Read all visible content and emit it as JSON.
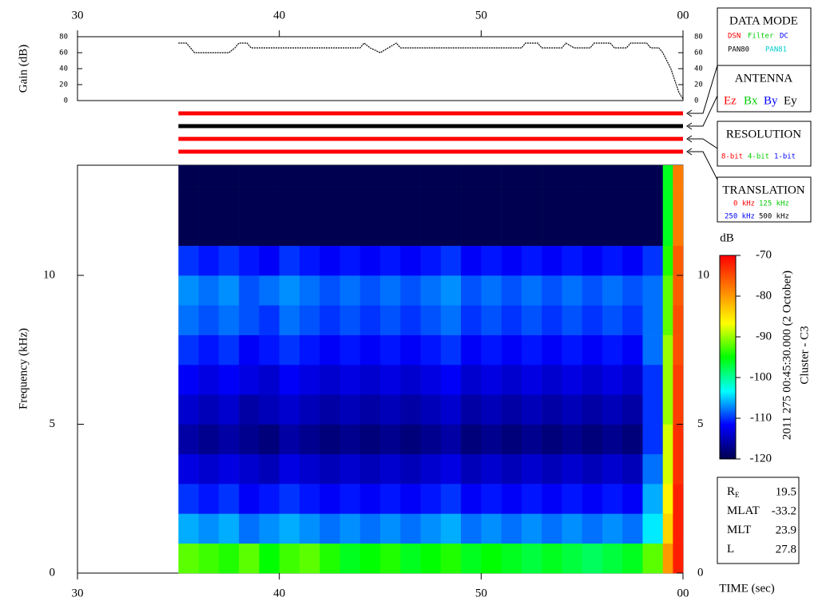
{
  "chart_data": [
    {
      "type": "line",
      "ylabel": "Gain (dB)",
      "color": "#000000",
      "x": [
        35.0,
        35.4,
        35.6,
        35.8,
        37.5,
        37.8,
        38.0,
        38.4,
        38.6,
        44.0,
        44.2,
        44.5,
        45.0,
        45.4,
        45.8,
        46.0,
        52.0,
        52.2,
        52.8,
        53.0,
        54.0,
        54.2,
        54.6,
        55.4,
        55.6,
        56.4,
        56.6,
        57.2,
        57.4,
        58.2,
        58.4,
        58.8,
        59.0,
        59.4,
        59.8,
        60.0
      ],
      "values": [
        72,
        72,
        66,
        60,
        60,
        66,
        72,
        72,
        66,
        66,
        72,
        66,
        60,
        66,
        72,
        66,
        66,
        72,
        72,
        66,
        66,
        72,
        66,
        66,
        72,
        72,
        66,
        66,
        72,
        72,
        66,
        66,
        60,
        40,
        10,
        2
      ],
      "xlim": [
        30,
        60
      ],
      "xticks": [
        30,
        40,
        50,
        {
          "value": 60,
          "label": "00"
        }
      ],
      "ylim": [
        0,
        80
      ],
      "yticks": [
        0,
        20,
        40,
        60,
        80
      ]
    },
    {
      "type": "heatmap",
      "ylabel": "Frequency (kHz)",
      "xlabel": "TIME (sec)",
      "colorbar_label": "dB",
      "xlim": [
        30,
        60
      ],
      "xticks": [
        30,
        40,
        50,
        {
          "value": 60,
          "label": "00"
        }
      ],
      "ylim": [
        0,
        13.7
      ],
      "yticks": [
        0,
        5,
        10
      ],
      "clim": [
        -120,
        -70
      ],
      "cticks": [
        -70,
        -80,
        -90,
        -100,
        -110,
        -120
      ],
      "colormap": [
        "#000050",
        "#0000ff",
        "#00ffff",
        "#00ff00",
        "#ffff00",
        "#ff8000",
        "#ff0000"
      ],
      "x_bins": [
        35,
        36,
        37,
        38,
        39,
        40,
        41,
        42,
        43,
        44,
        45,
        46,
        47,
        48,
        49,
        50,
        51,
        52,
        53,
        54,
        55,
        56,
        57,
        58,
        59,
        59.5,
        60
      ],
      "y_bins": [
        0,
        1,
        2,
        3,
        4,
        5,
        6,
        7,
        8,
        9,
        10,
        11,
        12,
        13,
        13.7
      ],
      "z": [
        [
          -92,
          -93,
          -94,
          -92,
          -95,
          -93,
          -92,
          -94,
          -96,
          -95,
          -94,
          -96,
          -95,
          -94,
          -96,
          -95,
          -96,
          -97,
          -96,
          -97,
          -98,
          -97,
          -96,
          -92,
          -80,
          -72
        ],
        [
          -106,
          -107,
          -106,
          -108,
          -107,
          -106,
          -107,
          -108,
          -107,
          -108,
          -107,
          -108,
          -107,
          -106,
          -108,
          -107,
          -108,
          -107,
          -108,
          -107,
          -108,
          -107,
          -108,
          -104,
          -84,
          -72
        ],
        [
          -110,
          -111,
          -110,
          -112,
          -111,
          -110,
          -111,
          -112,
          -111,
          -112,
          -111,
          -112,
          -111,
          -110,
          -112,
          -111,
          -112,
          -111,
          -112,
          -111,
          -112,
          -111,
          -112,
          -106,
          -86,
          -72
        ],
        [
          -113,
          -114,
          -113,
          -114,
          -115,
          -113,
          -114,
          -115,
          -114,
          -115,
          -114,
          -115,
          -114,
          -113,
          -115,
          -114,
          -115,
          -114,
          -115,
          -114,
          -115,
          -114,
          -115,
          -108,
          -88,
          -73
        ],
        [
          -116,
          -117,
          -116,
          -117,
          -118,
          -116,
          -117,
          -118,
          -117,
          -118,
          -117,
          -118,
          -117,
          -116,
          -118,
          -117,
          -118,
          -117,
          -118,
          -117,
          -118,
          -117,
          -118,
          -110,
          -88,
          -73
        ],
        [
          -114,
          -115,
          -114,
          -116,
          -115,
          -114,
          -115,
          -116,
          -115,
          -116,
          -115,
          -116,
          -115,
          -114,
          -116,
          -115,
          -116,
          -115,
          -116,
          -115,
          -116,
          -115,
          -116,
          -110,
          -90,
          -74
        ],
        [
          -112,
          -113,
          -112,
          -113,
          -114,
          -112,
          -113,
          -114,
          -113,
          -114,
          -113,
          -114,
          -113,
          -112,
          -114,
          -113,
          -114,
          -113,
          -114,
          -113,
          -114,
          -113,
          -114,
          -110,
          -90,
          -74
        ],
        [
          -110,
          -111,
          -110,
          -112,
          -111,
          -110,
          -111,
          -112,
          -111,
          -112,
          -111,
          -112,
          -111,
          -110,
          -112,
          -111,
          -112,
          -111,
          -112,
          -111,
          -112,
          -111,
          -112,
          -108,
          -90,
          -75
        ],
        [
          -108,
          -109,
          -108,
          -109,
          -110,
          -108,
          -109,
          -110,
          -109,
          -110,
          -109,
          -110,
          -109,
          -108,
          -110,
          -109,
          -110,
          -109,
          -110,
          -109,
          -110,
          -109,
          -110,
          -108,
          -92,
          -75
        ],
        [
          -107,
          -108,
          -107,
          -109,
          -108,
          -107,
          -108,
          -109,
          -108,
          -109,
          -108,
          -109,
          -108,
          -107,
          -109,
          -108,
          -109,
          -108,
          -109,
          -108,
          -109,
          -108,
          -109,
          -108,
          -92,
          -76
        ],
        [
          -110,
          -111,
          -110,
          -111,
          -112,
          -110,
          -111,
          -112,
          -111,
          -112,
          -111,
          -112,
          -111,
          -110,
          -112,
          -111,
          -112,
          -111,
          -112,
          -111,
          -112,
          -111,
          -112,
          -110,
          -94,
          -76
        ],
        [
          -122,
          -122,
          -122,
          -122,
          -122,
          -122,
          -122,
          -122,
          -122,
          -122,
          -122,
          -122,
          -122,
          -122,
          -122,
          -122,
          -122,
          -122,
          -122,
          -122,
          -122,
          -122,
          -122,
          -120,
          -96,
          -78
        ],
        [
          -122,
          -122,
          -122,
          -122,
          -122,
          -122,
          -122,
          -122,
          -122,
          -122,
          -122,
          -122,
          -122,
          -122,
          -122,
          -122,
          -122,
          -122,
          -122,
          -122,
          -122,
          -122,
          -122,
          -120,
          -96,
          -78
        ],
        [
          -122,
          -122,
          -122,
          -122,
          -122,
          -122,
          -122,
          -122,
          -122,
          -122,
          -122,
          -122,
          -122,
          -122,
          -122,
          -122,
          -122,
          -122,
          -122,
          -122,
          -122,
          -122,
          -122,
          -120,
          -96,
          -78
        ]
      ]
    }
  ],
  "status_bars": [
    "#ff0000",
    "#000000",
    "#ff0000",
    "#ff0000"
  ],
  "panels": [
    {
      "title": "DATA MODE",
      "items": [
        {
          "text": "DSN",
          "color": "#ff0000"
        },
        {
          "text": "Filter",
          "color": "#00cc00"
        },
        {
          "text": "DC",
          "color": "#0000ff"
        },
        {
          "text": "PAN80",
          "color": "#000000"
        },
        {
          "text": "PAN81",
          "color": "#00cccc"
        }
      ]
    },
    {
      "title": "ANTENNA",
      "items": [
        {
          "text": "Ez",
          "color": "#ff0000"
        },
        {
          "text": "Bx",
          "color": "#00cc00"
        },
        {
          "text": "By",
          "color": "#0000ff"
        },
        {
          "text": "Ey",
          "color": "#000000"
        }
      ]
    },
    {
      "title": "RESOLUTION",
      "items": [
        {
          "text": "8-bit",
          "color": "#ff0000"
        },
        {
          "text": "4-bit",
          "color": "#00cc00"
        },
        {
          "text": "1-bit",
          "color": "#0000ff"
        }
      ]
    },
    {
      "title": "TRANSLATION",
      "items": [
        {
          "text": "0 kHz",
          "color": "#ff0000"
        },
        {
          "text": "125 kHz",
          "color": "#00cc00"
        },
        {
          "text": "250 kHz",
          "color": "#0000ff"
        },
        {
          "text": "500 kHz",
          "color": "#000000"
        }
      ]
    }
  ],
  "timestamp": "2011 275 00:45:30.000 (2 October)",
  "spacecraft": "Cluster - C3",
  "info": [
    {
      "label": "R",
      "sub": "E",
      "value": 19.5
    },
    {
      "label": "MLAT",
      "value": -33.2
    },
    {
      "label": "MLT",
      "value": 23.9
    },
    {
      "label": "L",
      "value": 27.8
    }
  ]
}
